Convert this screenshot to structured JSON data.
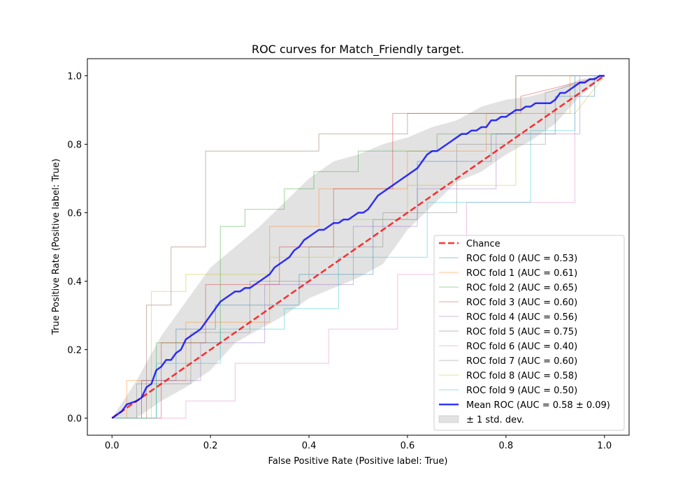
{
  "chart_data": {
    "type": "line",
    "title": "ROC curves for Match_Friendly target.",
    "xlabel": "False Positive Rate (Positive label: True)",
    "ylabel": "True Positive Rate (Positive label: True)",
    "xlim": [
      -0.05,
      1.05
    ],
    "ylim": [
      -0.05,
      1.05
    ],
    "xticks": [
      "0.0",
      "0.2",
      "0.4",
      "0.6",
      "0.8",
      "1.0"
    ],
    "yticks": [
      "0.0",
      "0.2",
      "0.4",
      "0.6",
      "0.8",
      "1.0"
    ],
    "grid": false,
    "legend_position": "lower-right",
    "chance": {
      "name": "Chance",
      "color": "#ff0000",
      "x": [
        0,
        1
      ],
      "y": [
        0,
        1
      ]
    },
    "folds": [
      {
        "name": "ROC fold 0 (AUC = 0.53)",
        "color": "#1f77b4",
        "x": [
          0,
          0.06,
          0.06,
          0.13,
          0.13,
          0.21,
          0.21,
          0.38,
          0.38,
          0.53,
          0.53,
          0.62,
          0.62,
          0.77,
          0.77,
          0.9,
          0.9,
          0.98,
          0.98,
          1.0
        ],
        "y": [
          0,
          0,
          0.11,
          0.11,
          0.26,
          0.26,
          0.33,
          0.33,
          0.42,
          0.42,
          0.58,
          0.58,
          0.75,
          0.75,
          0.83,
          0.83,
          0.94,
          0.94,
          1.0,
          1.0
        ]
      },
      {
        "name": "ROC fold 1 (AUC = 0.61)",
        "color": "#ff7f0e",
        "x": [
          0,
          0.03,
          0.03,
          0.15,
          0.15,
          0.32,
          0.32,
          0.42,
          0.42,
          0.6,
          0.6,
          0.76,
          0.76,
          0.93,
          0.93,
          1.0
        ],
        "y": [
          0,
          0,
          0.11,
          0.11,
          0.28,
          0.28,
          0.56,
          0.56,
          0.67,
          0.67,
          0.78,
          0.78,
          0.89,
          0.89,
          1.0,
          1.0
        ]
      },
      {
        "name": "ROC fold 2 (AUC = 0.65)",
        "color": "#2ca02c",
        "x": [
          0,
          0.09,
          0.09,
          0.22,
          0.22,
          0.27,
          0.27,
          0.35,
          0.35,
          0.41,
          0.41,
          0.5,
          0.5,
          0.66,
          0.66,
          0.82,
          0.82,
          0.87,
          0.87,
          1.0
        ],
        "y": [
          0,
          0,
          0.22,
          0.22,
          0.56,
          0.56,
          0.61,
          0.61,
          0.67,
          0.67,
          0.72,
          0.72,
          0.78,
          0.78,
          0.83,
          0.83,
          1.0,
          1.0,
          1.0,
          1.0
        ]
      },
      {
        "name": "ROC fold 3 (AUC = 0.60)",
        "color": "#d62728",
        "x": [
          0,
          0.1,
          0.1,
          0.19,
          0.19,
          0.34,
          0.34,
          0.45,
          0.45,
          0.57,
          0.57,
          0.68,
          0.68,
          0.83,
          0.83,
          1.0
        ],
        "y": [
          0,
          0,
          0.22,
          0.22,
          0.39,
          0.39,
          0.5,
          0.5,
          0.67,
          0.67,
          0.89,
          0.89,
          0.89,
          0.89,
          0.94,
          1.0
        ]
      },
      {
        "name": "ROC fold 4 (AUC = 0.56)",
        "color": "#9467bd",
        "x": [
          0,
          0.06,
          0.06,
          0.18,
          0.18,
          0.31,
          0.31,
          0.49,
          0.49,
          0.62,
          0.62,
          0.78,
          0.78,
          0.95,
          0.95,
          1.0
        ],
        "y": [
          0,
          0,
          0.11,
          0.11,
          0.22,
          0.22,
          0.39,
          0.39,
          0.56,
          0.56,
          0.67,
          0.67,
          0.83,
          0.83,
          1.0,
          1.0
        ]
      },
      {
        "name": "ROC fold 5 (AUC = 0.75)",
        "color": "#8c564b",
        "x": [
          0,
          0.07,
          0.07,
          0.12,
          0.12,
          0.19,
          0.19,
          0.3,
          0.3,
          0.42,
          0.42,
          0.6,
          0.6,
          0.82,
          0.82,
          1.0
        ],
        "y": [
          0,
          0,
          0.33,
          0.33,
          0.5,
          0.5,
          0.78,
          0.78,
          0.78,
          0.78,
          0.83,
          0.83,
          0.89,
          0.89,
          1.0,
          1.0
        ]
      },
      {
        "name": "ROC fold 6 (AUC = 0.40)",
        "color": "#e377c2",
        "x": [
          0,
          0.15,
          0.15,
          0.25,
          0.25,
          0.44,
          0.44,
          0.58,
          0.58,
          0.72,
          0.72,
          0.94,
          0.94,
          1.0
        ],
        "y": [
          0,
          0,
          0.05,
          0.05,
          0.16,
          0.16,
          0.26,
          0.26,
          0.42,
          0.42,
          0.63,
          0.63,
          1.0,
          1.0
        ]
      },
      {
        "name": "ROC fold 7 (AUC = 0.60)",
        "color": "#7f7f7f",
        "x": [
          0,
          0.05,
          0.05,
          0.16,
          0.16,
          0.28,
          0.28,
          0.4,
          0.4,
          0.55,
          0.55,
          0.7,
          0.7,
          0.88,
          0.88,
          1.0
        ],
        "y": [
          0,
          0,
          0.1,
          0.1,
          0.25,
          0.25,
          0.4,
          0.4,
          0.5,
          0.5,
          0.6,
          0.6,
          0.8,
          0.8,
          0.95,
          1.0
        ]
      },
      {
        "name": "ROC fold 8 (AUC = 0.58)",
        "color": "#bcbd22",
        "x": [
          0,
          0.08,
          0.08,
          0.15,
          0.15,
          0.32,
          0.32,
          0.45,
          0.45,
          0.6,
          0.6,
          0.82,
          0.82,
          0.94,
          0.94,
          1.0
        ],
        "y": [
          0,
          0,
          0.37,
          0.37,
          0.42,
          0.42,
          0.47,
          0.47,
          0.58,
          0.58,
          0.68,
          0.68,
          0.89,
          0.89,
          0.89,
          1.0
        ]
      },
      {
        "name": "ROC fold 9 (AUC = 0.50)",
        "color": "#17becf",
        "x": [
          0,
          0.09,
          0.09,
          0.22,
          0.22,
          0.35,
          0.35,
          0.46,
          0.46,
          0.64,
          0.64,
          0.85,
          0.85,
          0.94,
          0.94,
          1.0
        ],
        "y": [
          0,
          0,
          0.16,
          0.16,
          0.26,
          0.26,
          0.32,
          0.32,
          0.47,
          0.47,
          0.63,
          0.63,
          0.84,
          0.84,
          1.0,
          1.0
        ]
      }
    ],
    "mean": {
      "name": "Mean ROC (AUC = 0.58 ± 0.09)",
      "color": "#0000ff",
      "x": [
        0,
        0.02,
        0.03,
        0.05,
        0.06,
        0.07,
        0.08,
        0.09,
        0.1,
        0.11,
        0.12,
        0.13,
        0.14,
        0.15,
        0.16,
        0.17,
        0.18,
        0.19,
        0.2,
        0.21,
        0.22,
        0.23,
        0.24,
        0.25,
        0.26,
        0.27,
        0.28,
        0.29,
        0.3,
        0.31,
        0.32,
        0.33,
        0.34,
        0.35,
        0.36,
        0.37,
        0.38,
        0.39,
        0.4,
        0.41,
        0.42,
        0.43,
        0.44,
        0.45,
        0.46,
        0.47,
        0.48,
        0.49,
        0.5,
        0.51,
        0.52,
        0.53,
        0.54,
        0.55,
        0.56,
        0.57,
        0.58,
        0.59,
        0.6,
        0.61,
        0.62,
        0.63,
        0.64,
        0.65,
        0.66,
        0.67,
        0.68,
        0.69,
        0.7,
        0.71,
        0.72,
        0.73,
        0.74,
        0.75,
        0.76,
        0.77,
        0.78,
        0.79,
        0.8,
        0.81,
        0.82,
        0.83,
        0.84,
        0.85,
        0.86,
        0.87,
        0.88,
        0.89,
        0.9,
        0.91,
        0.92,
        0.93,
        0.94,
        0.95,
        0.96,
        0.97,
        0.98,
        0.99,
        1.0
      ],
      "y": [
        0,
        0.02,
        0.04,
        0.05,
        0.06,
        0.09,
        0.1,
        0.14,
        0.15,
        0.17,
        0.17,
        0.19,
        0.2,
        0.23,
        0.24,
        0.25,
        0.26,
        0.28,
        0.3,
        0.32,
        0.34,
        0.35,
        0.36,
        0.37,
        0.37,
        0.38,
        0.38,
        0.39,
        0.4,
        0.41,
        0.42,
        0.44,
        0.45,
        0.46,
        0.47,
        0.49,
        0.5,
        0.52,
        0.53,
        0.54,
        0.55,
        0.55,
        0.56,
        0.57,
        0.57,
        0.58,
        0.58,
        0.59,
        0.6,
        0.6,
        0.61,
        0.63,
        0.65,
        0.66,
        0.67,
        0.68,
        0.69,
        0.7,
        0.71,
        0.72,
        0.73,
        0.75,
        0.77,
        0.78,
        0.78,
        0.79,
        0.8,
        0.81,
        0.82,
        0.83,
        0.83,
        0.84,
        0.84,
        0.85,
        0.85,
        0.87,
        0.87,
        0.88,
        0.88,
        0.89,
        0.9,
        0.9,
        0.91,
        0.91,
        0.92,
        0.92,
        0.92,
        0.92,
        0.93,
        0.95,
        0.95,
        0.96,
        0.97,
        0.98,
        0.98,
        0.99,
        0.99,
        1.0,
        1.0
      ]
    },
    "std_band": {
      "name": "± 1 std. dev.",
      "color": "#d3d3d3",
      "x": [
        0,
        0.05,
        0.1,
        0.15,
        0.2,
        0.25,
        0.3,
        0.35,
        0.4,
        0.45,
        0.5,
        0.55,
        0.6,
        0.65,
        0.7,
        0.75,
        0.8,
        0.85,
        0.9,
        0.95,
        1.0
      ],
      "upper": [
        0.0,
        0.11,
        0.24,
        0.34,
        0.44,
        0.5,
        0.56,
        0.63,
        0.7,
        0.75,
        0.77,
        0.8,
        0.82,
        0.85,
        0.87,
        0.91,
        0.93,
        0.94,
        0.96,
        0.99,
        1.0
      ],
      "lower": [
        0.0,
        0.0,
        0.05,
        0.09,
        0.14,
        0.22,
        0.26,
        0.3,
        0.35,
        0.38,
        0.41,
        0.45,
        0.55,
        0.62,
        0.69,
        0.72,
        0.77,
        0.81,
        0.86,
        0.94,
        1.0
      ]
    }
  }
}
